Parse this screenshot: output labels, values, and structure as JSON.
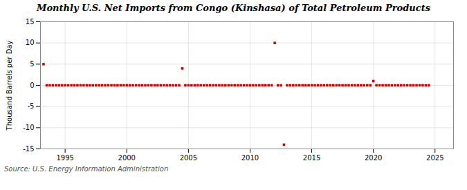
{
  "chart_data": {
    "type": "scatter",
    "title": "Monthly U.S. Net Imports from Congo (Kinshasa) of Total Petroleum Products",
    "ylabel": "Thousand Barrels per Day",
    "annotations": [
      "Source: U.S. Energy Information Administration"
    ],
    "color": "#cc0000",
    "marker": "square",
    "grid": true,
    "xlim": [
      1993.0,
      2026.5
    ],
    "xticks": [
      1995,
      2000,
      2005,
      2010,
      2015,
      2020,
      2025
    ],
    "ylim": [
      -15,
      15
    ],
    "yticks": [
      -15,
      -10,
      -5,
      0,
      5,
      10,
      15
    ],
    "x": [
      1993.25,
      1993.5,
      1993.75,
      1994.0,
      1994.25,
      1994.5,
      1994.75,
      1995.0,
      1995.25,
      1995.5,
      1995.75,
      1996.0,
      1996.25,
      1996.5,
      1996.75,
      1997.0,
      1997.25,
      1997.5,
      1997.75,
      1998.0,
      1998.25,
      1998.5,
      1998.75,
      1999.0,
      1999.25,
      1999.5,
      1999.75,
      2000.0,
      2000.25,
      2000.5,
      2000.75,
      2001.0,
      2001.25,
      2001.5,
      2001.75,
      2002.0,
      2002.25,
      2002.5,
      2002.75,
      2003.0,
      2003.25,
      2003.5,
      2003.75,
      2004.0,
      2004.25,
      2004.5,
      2004.75,
      2005.0,
      2005.25,
      2005.5,
      2005.75,
      2006.0,
      2006.25,
      2006.5,
      2006.75,
      2007.0,
      2007.25,
      2007.5,
      2007.75,
      2008.0,
      2008.25,
      2008.5,
      2008.75,
      2009.0,
      2009.25,
      2009.5,
      2009.75,
      2010.0,
      2010.25,
      2010.5,
      2010.75,
      2011.0,
      2011.25,
      2011.5,
      2011.75,
      2012.0,
      2012.25,
      2012.5,
      2012.75,
      2013.0,
      2013.25,
      2013.5,
      2013.75,
      2014.0,
      2014.25,
      2014.5,
      2014.75,
      2015.0,
      2015.25,
      2015.5,
      2015.75,
      2016.0,
      2016.25,
      2016.5,
      2016.75,
      2017.0,
      2017.25,
      2017.5,
      2017.75,
      2018.0,
      2018.25,
      2018.5,
      2018.75,
      2019.0,
      2019.25,
      2019.5,
      2019.75,
      2020.0,
      2020.25,
      2020.5,
      2020.75,
      2021.0,
      2021.25,
      2021.5,
      2021.75,
      2022.0,
      2022.25,
      2022.5,
      2022.75,
      2023.0,
      2023.25,
      2023.5,
      2023.75,
      2024.0,
      2024.25,
      2024.5
    ],
    "values": [
      5.0,
      0.0,
      0.0,
      0.0,
      0.0,
      0.0,
      0.0,
      0.0,
      0.0,
      0.0,
      0.0,
      0.0,
      0.0,
      0.0,
      0.0,
      0.0,
      0.0,
      0.0,
      0.0,
      0.0,
      0.0,
      0.0,
      0.0,
      0.0,
      0.0,
      0.0,
      0.0,
      0.0,
      0.0,
      0.0,
      0.0,
      0.0,
      0.0,
      0.0,
      0.0,
      0.0,
      0.0,
      0.0,
      0.0,
      0.0,
      0.0,
      0.0,
      0.0,
      0.0,
      0.0,
      4.0,
      0.0,
      0.0,
      0.0,
      0.0,
      0.0,
      0.0,
      0.0,
      0.0,
      0.0,
      0.0,
      0.0,
      0.0,
      0.0,
      0.0,
      0.0,
      0.0,
      0.0,
      0.0,
      0.0,
      0.0,
      0.0,
      0.0,
      0.0,
      0.0,
      0.0,
      0.0,
      0.0,
      0.0,
      0.0,
      10.0,
      0.0,
      0.0,
      -14.0,
      0.0,
      0.0,
      0.0,
      0.0,
      0.0,
      0.0,
      0.0,
      0.0,
      0.0,
      0.0,
      0.0,
      0.0,
      0.0,
      0.0,
      0.0,
      0.0,
      0.0,
      0.0,
      0.0,
      0.0,
      0.0,
      0.0,
      0.0,
      0.0,
      0.0,
      0.0,
      0.0,
      0.0,
      1.0,
      0.0,
      0.0,
      0.0,
      0.0,
      0.0,
      0.0,
      0.0,
      0.0,
      0.0,
      0.0,
      0.0,
      0.0,
      0.0,
      0.0,
      0.0,
      0.0,
      0.0,
      0.0
    ]
  }
}
